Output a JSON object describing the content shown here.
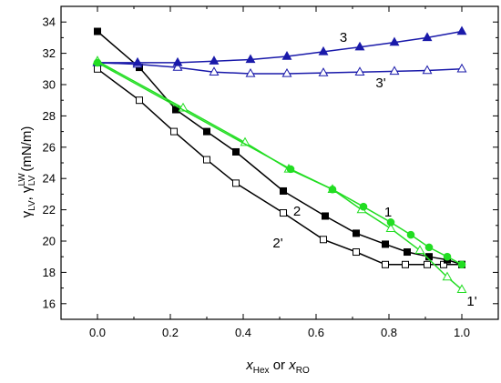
{
  "chart_data": {
    "type": "scatter",
    "xlim": [
      -0.1,
      1.1
    ],
    "ylim": [
      15,
      35
    ],
    "x_ticks": [
      "0.0",
      "0.2",
      "0.4",
      "0.6",
      "0.8",
      "1.0"
    ],
    "y_ticks": [
      "16",
      "18",
      "20",
      "22",
      "24",
      "26",
      "28",
      "30",
      "32",
      "34"
    ],
    "grid": false,
    "xlabel": {
      "p1": "x",
      "s1": "Hex",
      "p2": " or ",
      "p3": "x",
      "s2": "RO"
    },
    "ylabel": {
      "g1": "γ",
      "s1": "LV",
      "comma": ", ",
      "g2": "γ",
      "sup": "LW",
      "s2": "LV",
      "unit": " (mN/m)"
    },
    "series": [
      {
        "name": "1",
        "color": "#22dd22",
        "marker": "circle-filled",
        "x": [
          0.0,
          0.53,
          0.645,
          0.73,
          0.805,
          0.86,
          0.91,
          0.96,
          1.0
        ],
        "y": [
          31.4,
          24.6,
          23.3,
          22.2,
          21.2,
          20.4,
          19.6,
          19.0,
          18.5
        ]
      },
      {
        "name": "1'",
        "color": "#22dd22",
        "marker": "triangle-open",
        "x": [
          0.0,
          0.235,
          0.405,
          0.525,
          0.645,
          0.725,
          0.805,
          0.885,
          0.96,
          1.0
        ],
        "y": [
          31.5,
          28.5,
          26.3,
          24.6,
          23.3,
          22.0,
          20.8,
          19.4,
          17.7,
          16.9
        ]
      },
      {
        "name": "2",
        "color": "#000000",
        "marker": "square-filled",
        "x": [
          0.0,
          0.115,
          0.215,
          0.3,
          0.38,
          0.51,
          0.625,
          0.71,
          0.79,
          0.85,
          0.91,
          0.96,
          1.0
        ],
        "y": [
          33.4,
          31.1,
          28.4,
          27.0,
          25.7,
          23.2,
          21.6,
          20.5,
          19.8,
          19.3,
          19.0,
          18.8,
          18.5
        ]
      },
      {
        "name": "2'",
        "color": "#000000",
        "marker": "square-open",
        "x": [
          0.0,
          0.115,
          0.21,
          0.3,
          0.38,
          0.51,
          0.62,
          0.71,
          0.79,
          0.845,
          0.905,
          0.95,
          1.0
        ],
        "y": [
          31.0,
          29.0,
          27.0,
          25.2,
          23.7,
          21.8,
          20.1,
          19.3,
          18.5,
          18.5,
          18.5,
          18.5,
          18.5
        ]
      },
      {
        "name": "3",
        "color": "#1a1aaa",
        "marker": "triangle-filled",
        "x": [
          0.0,
          0.11,
          0.22,
          0.32,
          0.42,
          0.52,
          0.62,
          0.72,
          0.815,
          0.905,
          1.0
        ],
        "y": [
          31.4,
          31.4,
          31.4,
          31.5,
          31.6,
          31.8,
          32.1,
          32.4,
          32.7,
          33.0,
          33.4
        ]
      },
      {
        "name": "3'",
        "color": "#1a1aaa",
        "marker": "triangle-open",
        "x": [
          0.0,
          0.11,
          0.22,
          0.32,
          0.42,
          0.52,
          0.62,
          0.72,
          0.815,
          0.905,
          1.0
        ],
        "y": [
          31.4,
          31.3,
          31.1,
          30.8,
          30.7,
          30.7,
          30.75,
          30.8,
          30.85,
          30.9,
          31.0
        ]
      }
    ]
  }
}
